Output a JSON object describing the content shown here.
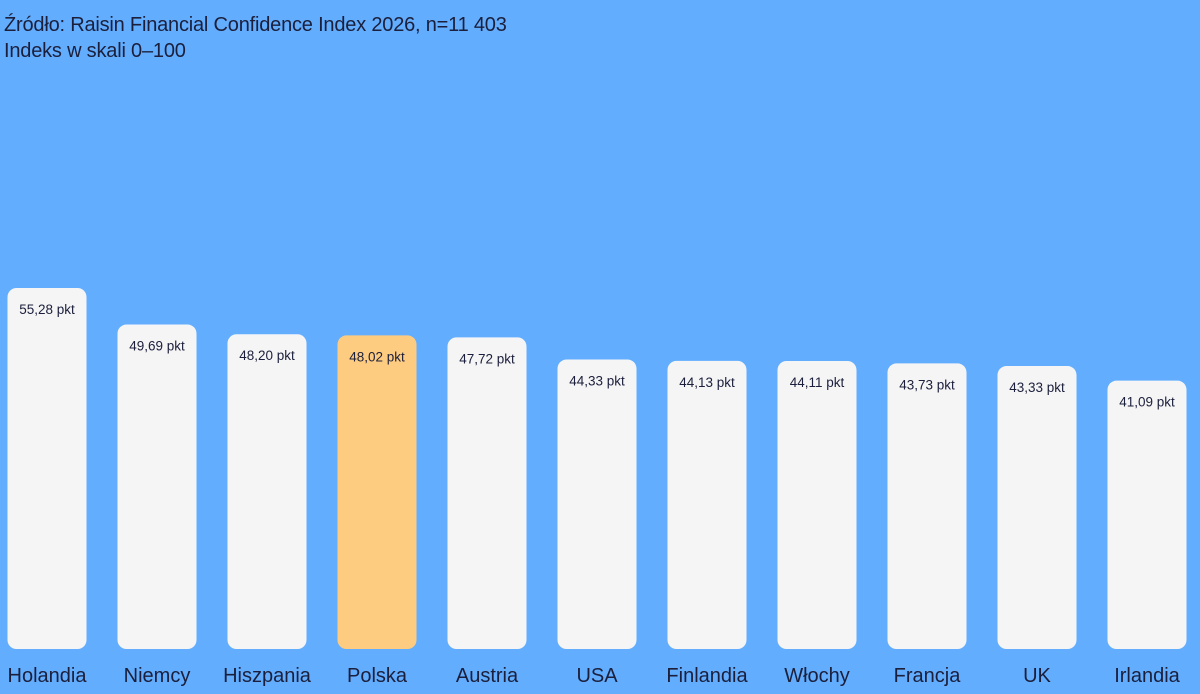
{
  "chart_data": {
    "type": "bar",
    "source_line": "Źródło: Raisin Financial Confidence Index 2026, n=11 403",
    "scale_line": "Indeks w skali 0–100",
    "title": "",
    "xlabel": "",
    "ylabel": "",
    "ylim": [
      0,
      100
    ],
    "grid": false,
    "value_unit": "pkt",
    "categories": [
      "Holandia",
      "Niemcy",
      "Hiszpania",
      "Polska",
      "Austria",
      "USA",
      "Finlandia",
      "Włochy",
      "Francja",
      "UK",
      "Irlandia"
    ],
    "values": [
      55.28,
      49.69,
      48.2,
      48.02,
      47.72,
      44.33,
      44.13,
      44.11,
      43.73,
      43.33,
      41.09
    ],
    "value_labels": [
      "55,28 pkt",
      "49,69 pkt",
      "48,20 pkt",
      "48,02 pkt",
      "47,72 pkt",
      "44,33 pkt",
      "44,13 pkt",
      "44,11 pkt",
      "43,73 pkt",
      "43,33 pkt",
      "41,09 pkt"
    ],
    "highlight_category": "Polska"
  },
  "colors": {
    "background": "#62adfe",
    "bar": "#f5f5f5",
    "bar_highlight": "#fecc80",
    "text": "#1b1f3b"
  }
}
